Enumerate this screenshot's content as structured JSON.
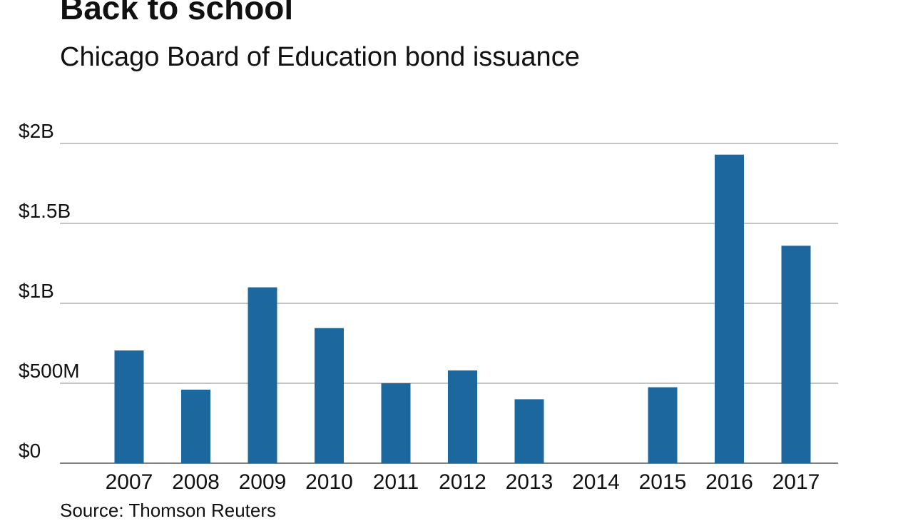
{
  "header": {
    "title": "Back to school",
    "subtitle": "Chicago Board of Education bond issuance"
  },
  "footer": {
    "source": "Source: Thomson Reuters"
  },
  "colors": {
    "bar": "#1c679e",
    "gridline": "#888888",
    "background": "#ffffff",
    "text": "#111111"
  },
  "chart_data": {
    "type": "bar",
    "title": "Back to school",
    "subtitle": "Chicago Board of Education bond issuance",
    "xlabel": "",
    "ylabel": "",
    "categories": [
      "2007",
      "2008",
      "2009",
      "2010",
      "2011",
      "2012",
      "2013",
      "2014",
      "2015",
      "2016",
      "2017"
    ],
    "values": [
      705000000,
      460000000,
      1100000000,
      845000000,
      500000000,
      580000000,
      400000000,
      0,
      475000000,
      1930000000,
      1360000000
    ],
    "unit": "USD",
    "ylim": [
      0,
      2000000000
    ],
    "yticks": [
      {
        "value": 0,
        "label": "$0"
      },
      {
        "value": 500000000,
        "label": "$500M"
      },
      {
        "value": 1000000000,
        "label": "$1B"
      },
      {
        "value": 1500000000,
        "label": "$1.5B"
      },
      {
        "value": 2000000000,
        "label": "$2B"
      }
    ],
    "grid": true,
    "legend": "none"
  }
}
